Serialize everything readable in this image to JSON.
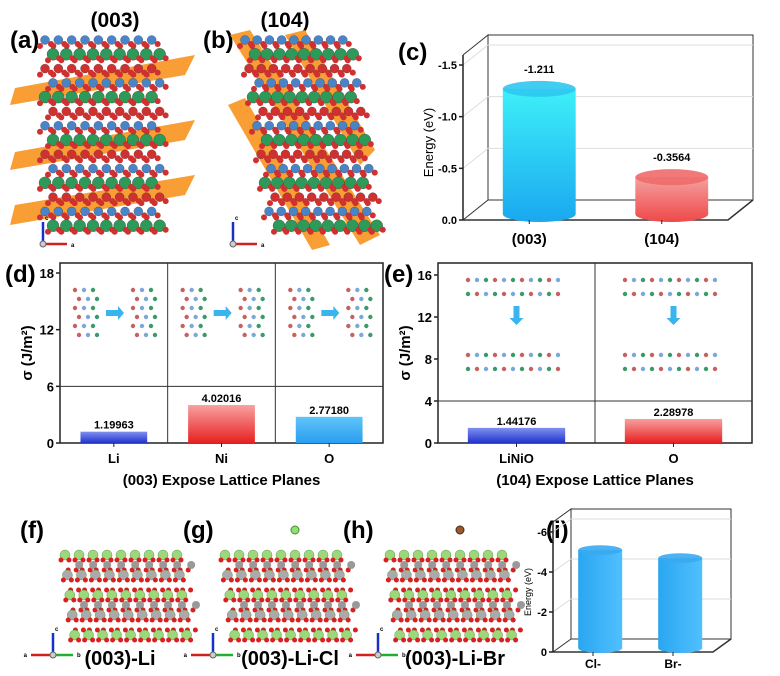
{
  "panels": {
    "a": {
      "label": "(a)",
      "title": "(003)",
      "axes": [
        "c",
        "a"
      ]
    },
    "b": {
      "label": "(b)",
      "title": "(104)"
    },
    "c": {
      "label": "(c)"
    },
    "d": {
      "label": "(d)"
    },
    "e": {
      "label": "(e)"
    },
    "f": {
      "label": "(f)",
      "caption": "(003)-Li",
      "axes": [
        "c",
        "a",
        "b"
      ]
    },
    "g": {
      "label": "(g)",
      "caption": "(003)-Li-Cl",
      "axes": [
        "c",
        "a",
        "b"
      ]
    },
    "h": {
      "label": "(h)",
      "caption": "(003)-Li-Br",
      "axes": [
        "c",
        "a",
        "b"
      ]
    },
    "i": {
      "label": "(i)"
    }
  },
  "colors": {
    "cyan": "#2ec6f0",
    "red": "#f05a5a",
    "blue": "#3344dd",
    "lightblue": "#3aaaf0",
    "atom_o": "#d03030",
    "atom_ni": "#4a84c8",
    "atom_li": "#2e9a5a",
    "plane": "#f7931e"
  },
  "chart_data": [
    {
      "id": "c",
      "type": "bar",
      "style": "3d-cylinder",
      "categories": [
        "(003)",
        "(104)"
      ],
      "values": [
        -1.211,
        -0.3564
      ],
      "data_labels": [
        "-1.211",
        "-0.3564"
      ],
      "ylabel": "Energy (eV)",
      "ylim": [
        0,
        -1.5
      ],
      "yticks": [
        "0.0",
        "-0.5",
        "-1.0",
        "-1.5"
      ],
      "colors": [
        "#2ec6f0",
        "#f06a6a"
      ],
      "grid": true
    },
    {
      "id": "d",
      "type": "bar",
      "categories": [
        "Li",
        "Ni",
        "O"
      ],
      "values": [
        1.19963,
        4.02016,
        2.7718
      ],
      "data_labels": [
        "1.19963",
        "4.02016",
        "2.77180"
      ],
      "ylabel": "σ (J/m²)",
      "xlabel": "(003) Expose Lattice Planes",
      "ylim": [
        0,
        18
      ],
      "yticks": [
        "0",
        "6",
        "12",
        "18"
      ],
      "colors": [
        "#3344dd",
        "#f03a3a",
        "#3aaaf0"
      ],
      "grid": false
    },
    {
      "id": "e",
      "type": "bar",
      "categories": [
        "LiNiO",
        "O"
      ],
      "values": [
        1.44176,
        2.28978
      ],
      "data_labels": [
        "1.44176",
        "2.28978"
      ],
      "ylabel": "σ (J/m²)",
      "xlabel": "(104) Expose Lattice Planes",
      "ylim": [
        0,
        16
      ],
      "yticks": [
        "0",
        "4",
        "8",
        "12",
        "16"
      ],
      "colors": [
        "#3344dd",
        "#f03a3a"
      ],
      "grid": false
    },
    {
      "id": "i",
      "type": "bar",
      "style": "3d-cylinder",
      "categories": [
        "Cl-",
        "Br-"
      ],
      "values": [
        -4.9,
        -4.5
      ],
      "ylabel": "Energy (eV)",
      "ylim": [
        0,
        -6
      ],
      "yticks": [
        "0",
        "-2",
        "-4",
        "-6"
      ],
      "colors": [
        "#3aaaf0",
        "#3aaaf0"
      ],
      "grid": true
    }
  ]
}
